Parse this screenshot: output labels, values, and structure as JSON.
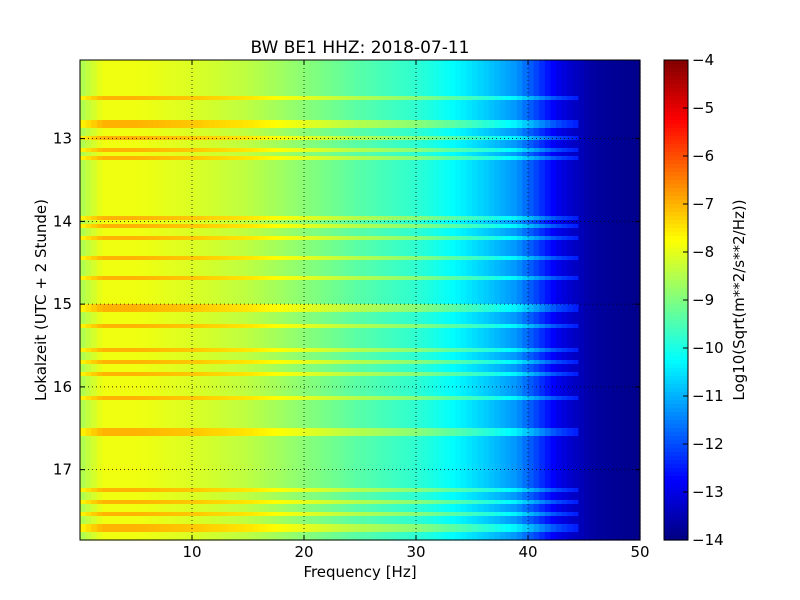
{
  "chart_data": {
    "type": "heatmap",
    "title": "BW BE1 HHZ: 2018-07-11",
    "xlabel": "Frequency [Hz]",
    "ylabel": "Lokalzeit (UTC + 2 Stunde)",
    "xlim": [
      0,
      50
    ],
    "ylim": [
      12.05,
      17.85
    ],
    "x_ticks": [
      10,
      20,
      30,
      40,
      50
    ],
    "y_ticks": [
      13,
      14,
      15,
      16,
      17
    ],
    "y_inverted": true,
    "grid": true,
    "colormap": "jet",
    "colorbar": {
      "label": "Log10(Sqrt(m**2/s**2/Hz))",
      "range": [
        -14,
        -4
      ],
      "ticks": [
        -14,
        -13,
        -12,
        -11,
        -10,
        -9,
        -8,
        -7,
        -6,
        -5,
        -4
      ]
    },
    "frequency_profile_hz": [
      0,
      2,
      5,
      10,
      15,
      20,
      25,
      30,
      33,
      36,
      39,
      41,
      42.5,
      44,
      46,
      50
    ],
    "frequency_profile_log10": [
      -8.6,
      -7.9,
      -7.9,
      -8.1,
      -8.4,
      -8.9,
      -9.4,
      -9.8,
      -10.2,
      -10.7,
      -11.3,
      -12.2,
      -12.9,
      -13.3,
      -13.7,
      -13.9
    ],
    "strong_band_times": [
      12.5,
      12.82,
      13.0,
      13.12,
      13.25,
      13.95,
      14.05,
      14.2,
      14.45,
      14.7,
      15.05,
      15.25,
      15.55,
      15.7,
      15.85,
      16.15,
      16.55,
      17.25,
      17.4,
      17.55,
      17.7
    ],
    "band_offset_log10": 0.9
  }
}
